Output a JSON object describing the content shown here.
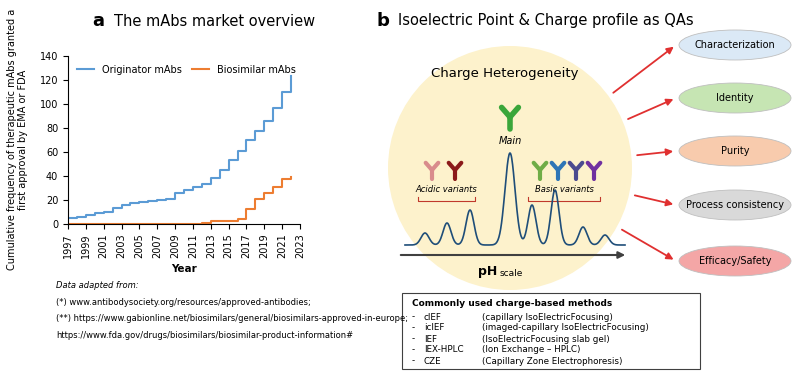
{
  "chart_data": {
    "type": "line",
    "title": "The mAbs market overview",
    "x_label": "Year",
    "y_label": "Cumulative frequency of therapeutic mAbs granted a first approval by EMA or FDA",
    "x": [
      1997,
      1998,
      1999,
      2000,
      2001,
      2002,
      2003,
      2004,
      2005,
      2006,
      2007,
      2008,
      2009,
      2010,
      2011,
      2012,
      2013,
      2014,
      2015,
      2016,
      2017,
      2018,
      2019,
      2020,
      2021,
      2022
    ],
    "series": [
      {
        "name": "Originator mAbs",
        "color": "#5b9bd5",
        "values": [
          5,
          6,
          7,
          9,
          10,
          13,
          16,
          17,
          18,
          19,
          20,
          21,
          26,
          28,
          31,
          33,
          38,
          45,
          53,
          61,
          70,
          77,
          86,
          97,
          110,
          123
        ]
      },
      {
        "name": "Biosimilar mAbs",
        "color": "#ed7d31",
        "values": [
          0,
          0,
          0,
          0,
          0,
          0,
          0,
          0,
          0,
          0,
          0,
          0,
          0,
          0,
          0,
          1,
          2,
          2,
          2,
          4,
          12,
          21,
          26,
          31,
          37,
          39
        ]
      }
    ],
    "xlim": [
      1997,
      2023
    ],
    "xticks": [
      1997,
      1999,
      2001,
      2003,
      2005,
      2007,
      2009,
      2011,
      2013,
      2015,
      2017,
      2019,
      2021,
      2023
    ],
    "ylim": [
      0,
      140
    ],
    "yticks": [
      0,
      20,
      40,
      60,
      80,
      100,
      120,
      140
    ],
    "grid": false,
    "legend": "upper left",
    "line_style": "steps"
  },
  "panel_a": {
    "label": "a",
    "notes": [
      "Data adapted from:",
      "(*) www.antibodysociety.org/resources/approved-antibodies;",
      "(**) https://www.gabionline.net/biosimilars/general/biosimilars-approved-in-europe;",
      "https://www.fda.gov/drugs/biosimilars/biosimilar-product-information#"
    ]
  },
  "panel_b": {
    "label": "b",
    "title": "Isoelectric Point & Charge profile as QAs",
    "diagram": {
      "center_title": "Charge Heterogeneity",
      "main_label": "Main",
      "acidic_label": "Acidic variants",
      "basic_label": "Basic variants",
      "axis_main": "pH",
      "axis_sub": "scale"
    },
    "attributes": [
      {
        "label": "Characterization",
        "color": "#dbe9f6"
      },
      {
        "label": "Identity",
        "color": "#c6e5b3"
      },
      {
        "label": "Purity",
        "color": "#f8cbad"
      },
      {
        "label": "Process consistency",
        "color": "#d9d9d9"
      },
      {
        "label": "Efficacy/Safety",
        "color": "#f4a6a6"
      }
    ],
    "methods_box": {
      "title": "Commonly used charge-based methods",
      "bullet": "-",
      "items": [
        {
          "abbr": "cIEF",
          "name": "(capillary IsoElectricFocusing)"
        },
        {
          "abbr": "icIEF",
          "name": "(imaged-capillary IsoElectricFocusing)"
        },
        {
          "abbr": "IEF",
          "name": "(IsoElectricFocusing slab gel)"
        },
        {
          "abbr": "IEX-HPLC",
          "name": "(Ion Exchange – HPLC)"
        },
        {
          "abbr": "CZE",
          "name": "(Capillary Zone Electrophoresis)"
        }
      ]
    }
  }
}
